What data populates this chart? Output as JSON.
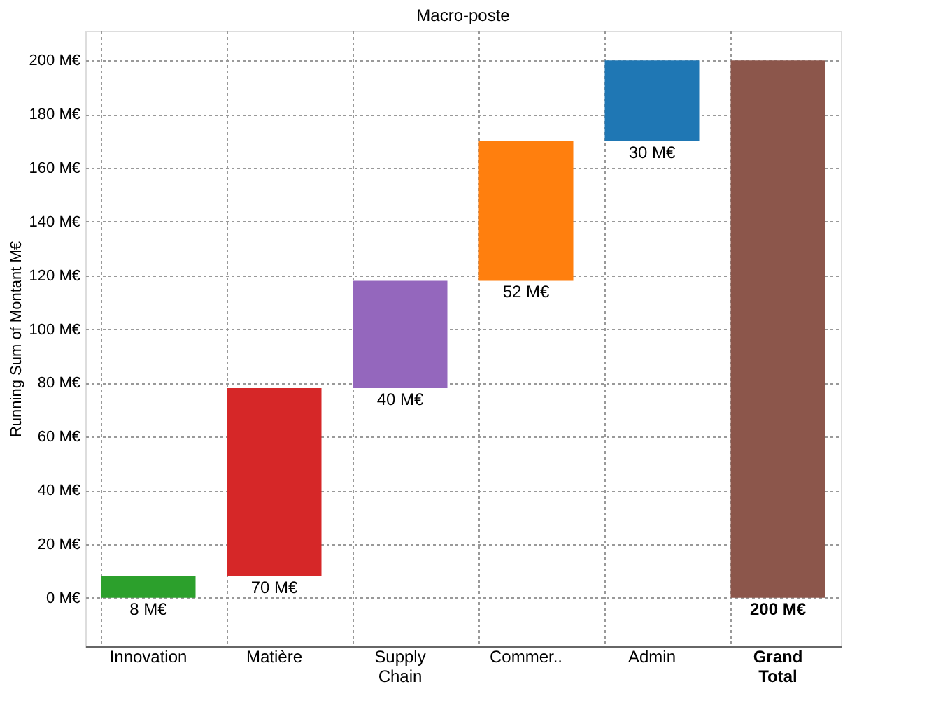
{
  "chart_data": {
    "type": "bar",
    "title": "Macro-poste",
    "ylabel": "Running Sum of Montant  M€",
    "categories": [
      "Innovation",
      "Matière",
      "Supply Chain",
      "Commer..",
      "Admin",
      "Grand Total"
    ],
    "values": [
      8,
      70,
      40,
      52,
      30,
      200
    ],
    "base": [
      0,
      8,
      78,
      118,
      170,
      0
    ],
    "colors": [
      "#2ca02c",
      "#d62728",
      "#9467bd",
      "#ff7f0e",
      "#1f77b4",
      "#8c564b"
    ],
    "value_labels": [
      "8 M€",
      "70 M€",
      "40 M€",
      "52 M€",
      "30 M€",
      "200 M€"
    ],
    "ylim": [
      -18,
      211
    ],
    "yticks": [
      {
        "value": 0,
        "label": "0 M€"
      },
      {
        "value": 20,
        "label": "20 M€"
      },
      {
        "value": 40,
        "label": "40 M€"
      },
      {
        "value": 60,
        "label": "60 M€"
      },
      {
        "value": 80,
        "label": "80 M€"
      },
      {
        "value": 100,
        "label": "100 M€"
      },
      {
        "value": 120,
        "label": "120 M€"
      },
      {
        "value": 140,
        "label": "140 M€"
      },
      {
        "value": 160,
        "label": "160 M€"
      },
      {
        "value": 180,
        "label": "180 M€"
      },
      {
        "value": 200,
        "label": "200 M€"
      }
    ],
    "grid": true,
    "legend": false
  }
}
